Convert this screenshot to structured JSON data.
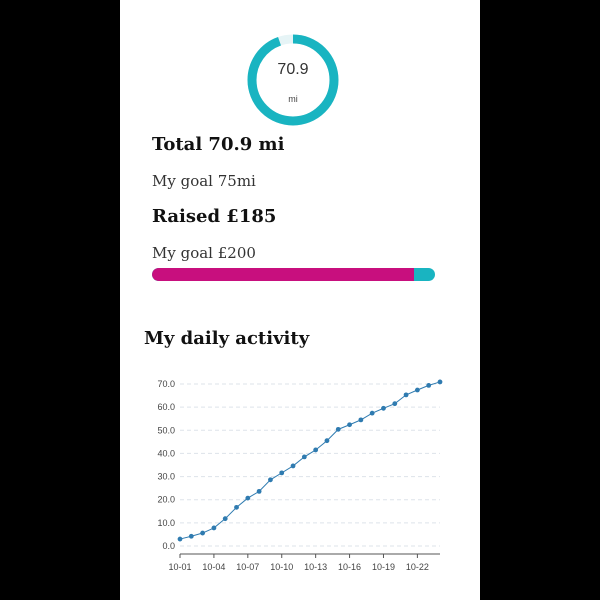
{
  "ring": {
    "value": "70.9",
    "unit": "mi",
    "progress": 0.945,
    "color": "#19b4c1"
  },
  "total_label": "Total 70.9 mi",
  "distance_goal_label": "My goal 75mi",
  "raised_label": "Raised £185",
  "money_goal_label": "My goal £200",
  "money_progress": {
    "raised": 185,
    "goal": 200,
    "fill_color": "#c80f7e",
    "track_color": "#19b4c1"
  },
  "section_title": "My daily activity",
  "chart_data": {
    "type": "line",
    "x": [
      "10-01",
      "10-02",
      "10-03",
      "10-04",
      "10-05",
      "10-06",
      "10-07",
      "10-08",
      "10-09",
      "10-10",
      "10-11",
      "10-12",
      "10-13",
      "10-14",
      "10-15",
      "10-16",
      "10-17",
      "10-18",
      "10-19",
      "10-20",
      "10-21",
      "10-22",
      "10-23",
      "10-24"
    ],
    "values": [
      3.0,
      4.2,
      5.6,
      7.8,
      11.8,
      16.7,
      20.7,
      23.6,
      28.6,
      31.6,
      34.6,
      38.5,
      41.5,
      45.5,
      50.4,
      52.4,
      54.5,
      57.4,
      59.5,
      61.5,
      65.3,
      67.4,
      69.4,
      70.9
    ],
    "x_ticks": [
      "10-01",
      "10-04",
      "10-07",
      "10-10",
      "10-13",
      "10-16",
      "10-19",
      "10-22"
    ],
    "y_ticks": [
      "0.0",
      "10.0",
      "20.0",
      "30.0",
      "40.0",
      "50.0",
      "60.0",
      "70.0"
    ],
    "ylim": [
      0,
      70
    ],
    "grid": true,
    "line_color": "#2f7bb0"
  }
}
